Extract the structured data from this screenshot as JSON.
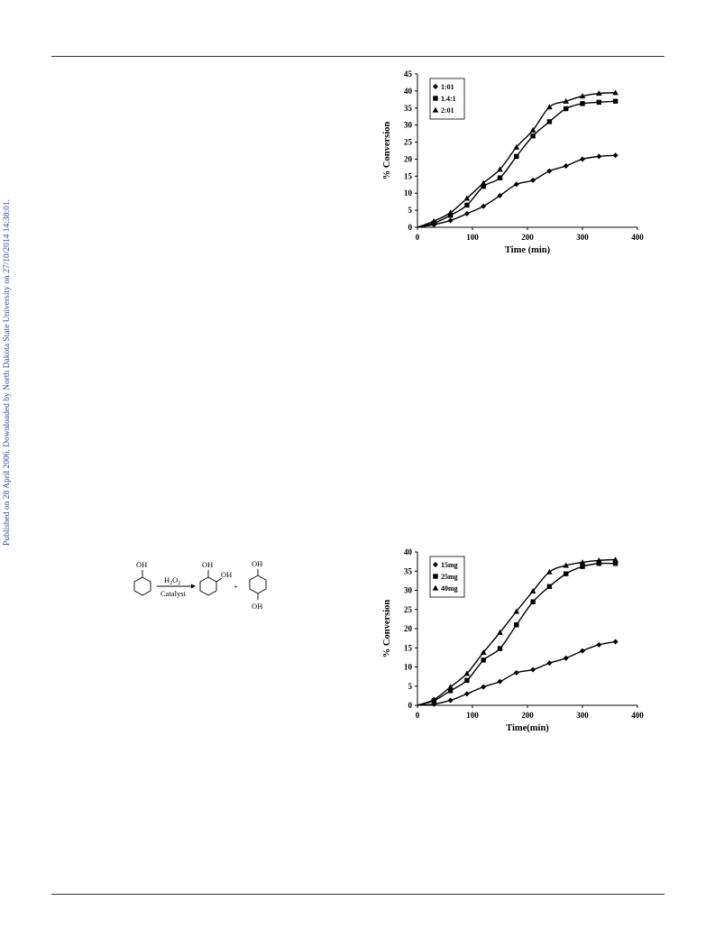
{
  "sidebar_note": "Published on 28 April 2006. Downloaded by North Dakota State University on 27/10/2014 14:38:01.",
  "scheme": {
    "reactant_label": "OH",
    "reagent": "H2O2",
    "catalyst": "Catalyst",
    "product1_label1": "OH",
    "product1_label2": "OH",
    "plus": "+",
    "product2_label_top": "OH",
    "product2_label_bottom": "OH"
  },
  "chart_data": [
    {
      "type": "scatter",
      "xlabel": "Time (min)",
      "ylabel": "% Conversion",
      "xlim": [
        0,
        400
      ],
      "ylim": [
        0,
        45
      ],
      "xticks": [
        0,
        100,
        200,
        300,
        400
      ],
      "yticks": [
        0,
        5,
        10,
        15,
        20,
        25,
        30,
        35,
        40,
        45
      ],
      "legend_position": "top-left",
      "series": [
        {
          "name": "1:01",
          "marker": "diamond",
          "x": [
            30,
            60,
            90,
            120,
            150,
            180,
            210,
            240,
            270,
            300,
            330,
            360
          ],
          "y": [
            0.8,
            2,
            4,
            6.2,
            9.3,
            12.6,
            13.8,
            16.5,
            18,
            20,
            20.8,
            21.1
          ]
        },
        {
          "name": "1.4:1",
          "marker": "square",
          "x": [
            30,
            60,
            90,
            120,
            150,
            180,
            210,
            240,
            270,
            300,
            330,
            360
          ],
          "y": [
            1.2,
            3.5,
            6.5,
            12,
            14.5,
            20.8,
            26.8,
            31,
            34.8,
            36.3,
            36.7,
            37
          ]
        },
        {
          "name": "2:01",
          "marker": "triangle",
          "x": [
            30,
            60,
            90,
            120,
            150,
            180,
            210,
            240,
            270,
            300,
            330,
            360
          ],
          "y": [
            1.8,
            4.3,
            8.5,
            13,
            17,
            23.5,
            28.5,
            35.3,
            37,
            38.5,
            39.3,
            39.5
          ]
        }
      ]
    },
    {
      "type": "scatter",
      "xlabel": "Time(min)",
      "ylabel": "% Conversion",
      "xlim": [
        0,
        400
      ],
      "ylim": [
        0,
        40
      ],
      "xticks": [
        0,
        100,
        200,
        300,
        400
      ],
      "yticks": [
        0,
        5,
        10,
        15,
        20,
        25,
        30,
        35,
        40
      ],
      "legend_position": "top-left",
      "series": [
        {
          "name": "15mg",
          "marker": "diamond",
          "x": [
            30,
            60,
            90,
            120,
            150,
            180,
            210,
            240,
            270,
            300,
            330,
            360
          ],
          "y": [
            0.3,
            1.3,
            3,
            4.8,
            6.2,
            8.5,
            9.3,
            11,
            12.3,
            14.2,
            15.8,
            16.6
          ]
        },
        {
          "name": "25mg",
          "marker": "square",
          "x": [
            30,
            60,
            90,
            120,
            150,
            180,
            210,
            240,
            270,
            300,
            330,
            360
          ],
          "y": [
            1.2,
            3.8,
            6.5,
            11.8,
            14.8,
            21,
            27,
            31,
            34.3,
            36.2,
            37,
            37
          ]
        },
        {
          "name": "40mg",
          "marker": "triangle",
          "x": [
            30,
            60,
            90,
            120,
            150,
            180,
            210,
            240,
            270,
            300,
            330,
            360
          ],
          "y": [
            1.5,
            4.8,
            8.3,
            13.8,
            19,
            24.5,
            29.8,
            34.8,
            36.5,
            37.3,
            37.8,
            38
          ]
        }
      ]
    }
  ]
}
